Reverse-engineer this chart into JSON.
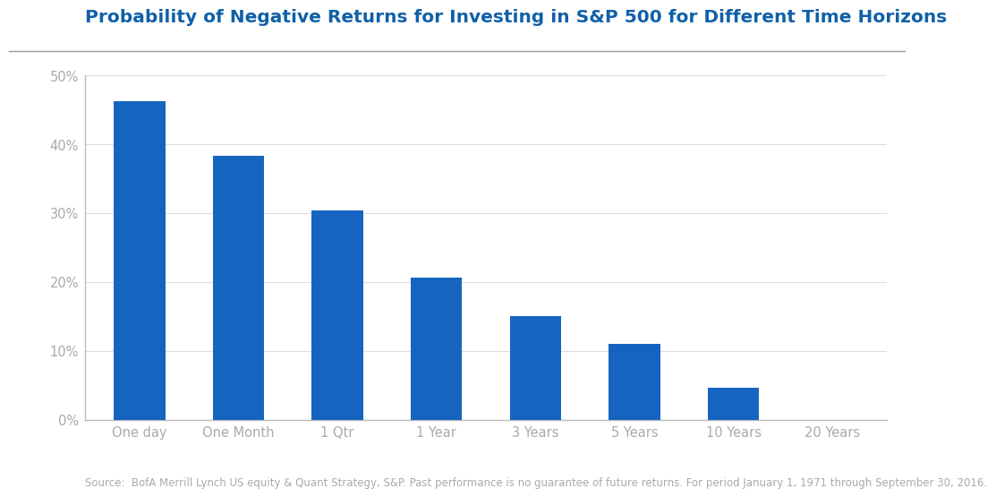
{
  "title": "Probability of Negative Returns for Investing in S&P 500 for Different Time Horizons",
  "categories": [
    "One day",
    "One Month",
    "1 Qtr",
    "1 Year",
    "3 Years",
    "5 Years",
    "10 Years",
    "20 Years"
  ],
  "values": [
    0.463,
    0.383,
    0.304,
    0.206,
    0.15,
    0.11,
    0.046,
    0.0
  ],
  "bar_color": "#1565C0",
  "ylim": [
    0,
    0.5
  ],
  "yticks": [
    0.0,
    0.1,
    0.2,
    0.3,
    0.4,
    0.5
  ],
  "ytick_labels": [
    "0%",
    "10%",
    "20%",
    "30%",
    "40%",
    "50%"
  ],
  "background_color": "#ffffff",
  "title_color": "#1060A8",
  "title_fontsize": 14.5,
  "axis_tick_color": "#aaaaaa",
  "source_text": "Source:  BofA Merrill Lynch US equity & Quant Strategy, S&P. Past performance is no guarantee of future returns. For period January 1, 1971 through September 30, 2016.",
  "source_fontsize": 8.5,
  "source_color": "#aaaaaa",
  "tick_label_fontsize": 10.5,
  "bar_width": 0.52,
  "spine_color": "#bbbbbb",
  "grid_color": "#dddddd",
  "title_line_color": "#999999"
}
